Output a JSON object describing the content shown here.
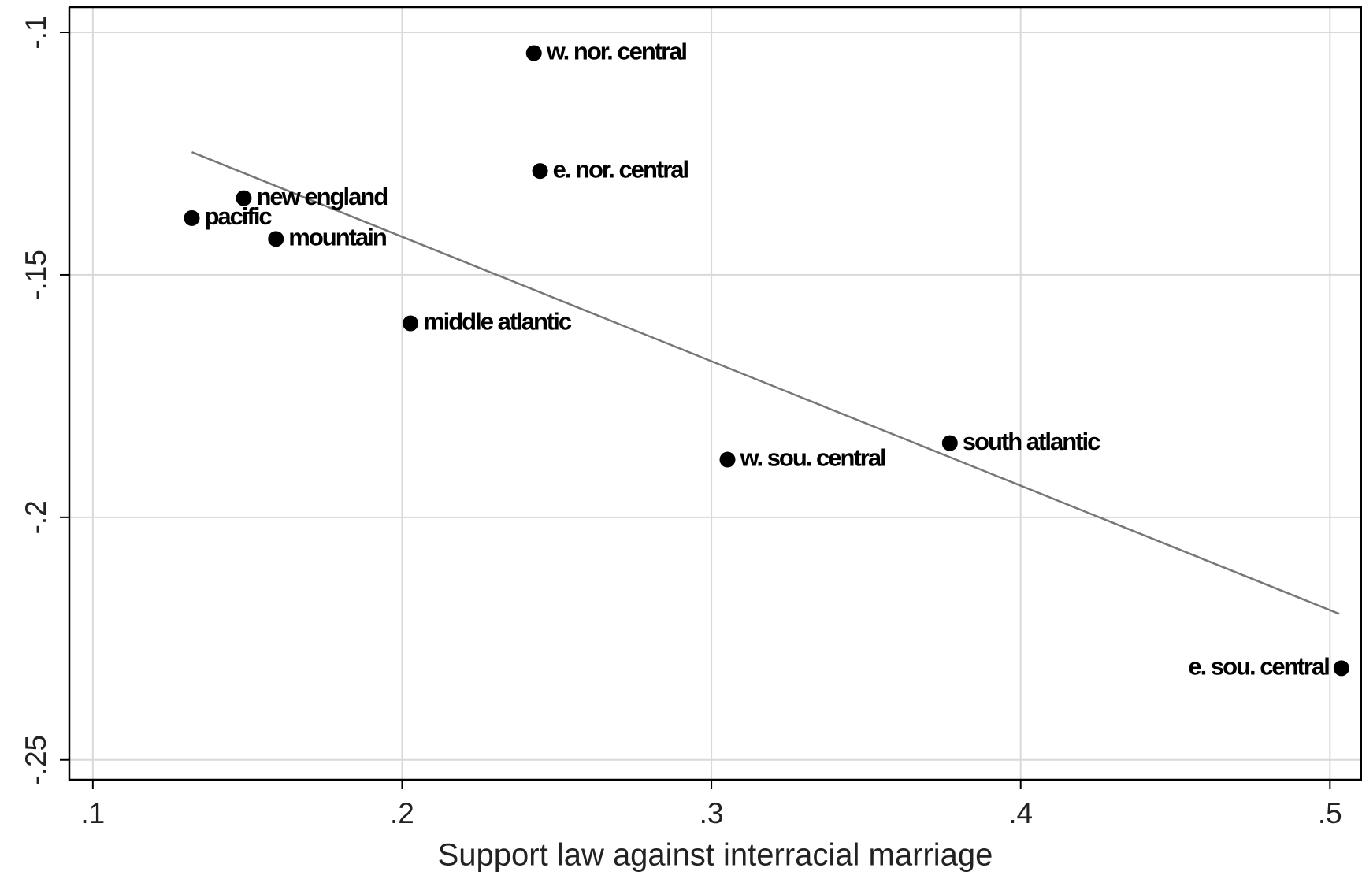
{
  "chart_data": {
    "type": "scatter",
    "x_label": "Support law against interracial marriage",
    "series": [
      {
        "name": null,
        "color": "#000000",
        "labels": [
          "w. nor. central",
          "e. nor. central",
          "new england",
          "pacific",
          "mountain",
          "middle atlantic",
          "w. sou. central",
          "south atlantic",
          "e. sou. central"
        ],
        "x": [
          0.2426,
          0.2446,
          0.1488,
          0.132,
          0.1592,
          0.2027,
          0.3052,
          0.3771,
          0.5037
        ],
        "values": [
          -0.1043,
          -0.1286,
          -0.1342,
          -0.1383,
          -0.1426,
          -0.16,
          -0.1881,
          -0.1847,
          -0.2311
        ]
      }
    ],
    "fit_line": {
      "color": "#777777",
      "x": [
        0.132,
        0.503
      ],
      "values": [
        -0.1247,
        -0.2199
      ]
    },
    "xlim": [
      0.0924,
      0.5101
    ],
    "ylim": [
      -0.2541,
      -0.0948
    ],
    "xticks": [
      {
        "value": 0.1,
        "label": ".1"
      },
      {
        "value": 0.2,
        "label": ".2"
      },
      {
        "value": 0.3,
        "label": ".3"
      },
      {
        "value": 0.4,
        "label": ".4"
      },
      {
        "value": 0.5,
        "label": ".5"
      }
    ],
    "yticks": [
      {
        "value": -0.1,
        "label": "-.1"
      },
      {
        "value": -0.15,
        "label": "-.15"
      },
      {
        "value": -0.2,
        "label": "-.2"
      },
      {
        "value": -0.25,
        "label": "-.25"
      }
    ],
    "grid": true
  }
}
